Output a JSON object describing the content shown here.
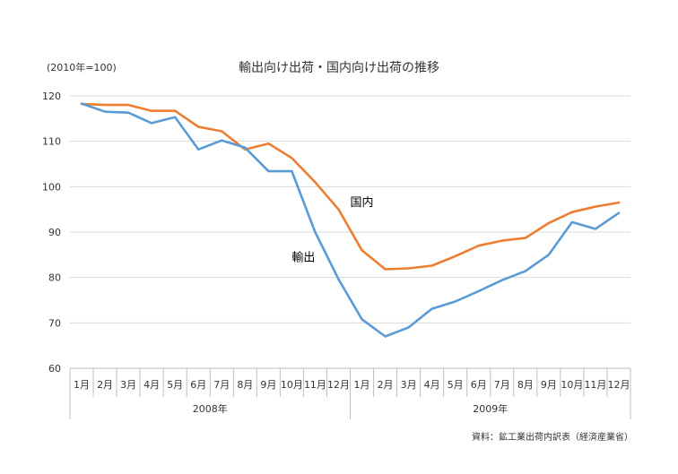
{
  "chart_data": {
    "type": "line",
    "title": "輸出向け出荷・国内向け出荷の推移",
    "unit_label": "(2010年=100)",
    "source": "資料：鉱工業出荷内訳表（経済産業省）",
    "x": [
      "1月",
      "2月",
      "3月",
      "4月",
      "5月",
      "6月",
      "7月",
      "8月",
      "9月",
      "10月",
      "11月",
      "12月",
      "1月",
      "2月",
      "3月",
      "4月",
      "5月",
      "6月",
      "7月",
      "8月",
      "9月",
      "10月",
      "11月",
      "12月"
    ],
    "groups": [
      {
        "label": "2008年",
        "start": 0,
        "count": 12
      },
      {
        "label": "2009年",
        "start": 12,
        "count": 12
      }
    ],
    "ylim": [
      60,
      120
    ],
    "yticks": [
      60,
      70,
      80,
      90,
      100,
      110,
      120
    ],
    "grid": true,
    "series": [
      {
        "name": "国内",
        "color": "#ED7D31",
        "values": [
          118.2,
          118.0,
          118.0,
          116.7,
          116.7,
          113.2,
          112.2,
          108.2,
          109.5,
          106.3,
          101.0,
          95.0,
          86.0,
          81.8,
          82.0,
          82.6,
          84.7,
          87.0,
          88.1,
          88.7,
          92.0,
          94.4,
          95.6,
          96.5
        ]
      },
      {
        "name": "輸出",
        "color": "#5B9BD5",
        "values": [
          118.3,
          116.5,
          116.3,
          114.0,
          115.3,
          108.2,
          110.2,
          108.6,
          103.4,
          103.4,
          90.0,
          79.6,
          70.8,
          67.0,
          69.0,
          73.1,
          74.7,
          77.0,
          79.4,
          81.4,
          85.0,
          92.2,
          90.7,
          94.2
        ]
      }
    ],
    "series_labels": [
      {
        "series": 0,
        "text": "国内",
        "at": {
          "x": 12,
          "y": 95.7
        }
      },
      {
        "series": 1,
        "text": "輸出",
        "at": {
          "x": 9.5,
          "y": 83.6
        }
      }
    ]
  }
}
